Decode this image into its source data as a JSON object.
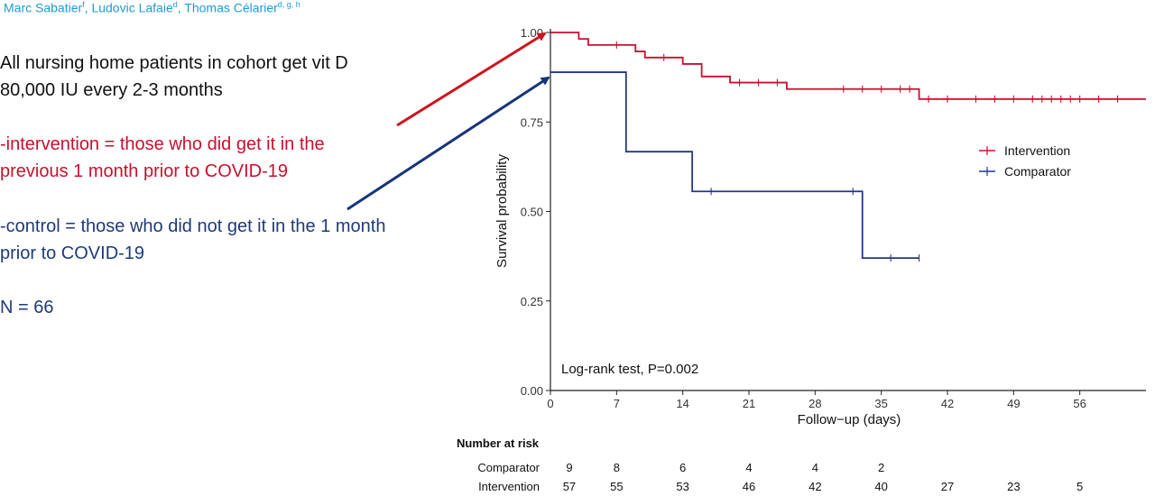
{
  "authors": [
    {
      "name": "Marc Sabatier",
      "sup": "f",
      "sep": ", "
    },
    {
      "name": "Ludovic Lafaie",
      "sup": "d",
      "sep": ", "
    },
    {
      "name": "Thomas Célarier",
      "sup": "d, g, h",
      "sep": ""
    }
  ],
  "bullets": {
    "line1a": "All nursing home patients in cohort get vit D",
    "line1b": "80,000 IU every 2-3 months",
    "line2a": "-intervention = those who did get it in the",
    "line2b": "previous 1 month prior to COVID-19",
    "line3a": "-control = those who did not get it in the 1 month",
    "line3b": "prior to COVID-19",
    "line4": "N = 66"
  },
  "colors": {
    "intervention": "#c8102e",
    "comparator": "#23378a",
    "arrow_red": "#d0121e",
    "arrow_blue": "#16357a"
  },
  "chart_data": {
    "type": "line",
    "subtype": "kaplan-meier",
    "xlabel": "Follow−up (days)",
    "ylabel": "Survival probability",
    "xlim": [
      0,
      63
    ],
    "ylim": [
      0,
      1.0
    ],
    "xticks": [
      "0",
      "7",
      "14",
      "21",
      "28",
      "35",
      "42",
      "49",
      "56"
    ],
    "yticks": [
      "0.00",
      "0.25",
      "0.50",
      "0.75",
      "1.00"
    ],
    "annotation": "Log-rank test, P=0.002",
    "legend_position": "right",
    "series": [
      {
        "name": "Intervention",
        "steps": [
          [
            0,
            1.0
          ],
          [
            3,
            0.982
          ],
          [
            4,
            0.965
          ],
          [
            9,
            0.947
          ],
          [
            10,
            0.93
          ],
          [
            14,
            0.912
          ],
          [
            16,
            0.877
          ],
          [
            19,
            0.86
          ],
          [
            25,
            0.842
          ],
          [
            39,
            0.814
          ],
          [
            63,
            0.814
          ]
        ],
        "censors": [
          [
            7,
            0.965
          ],
          [
            12,
            0.93
          ],
          [
            20,
            0.86
          ],
          [
            22,
            0.86
          ],
          [
            24,
            0.86
          ],
          [
            31,
            0.842
          ],
          [
            33,
            0.842
          ],
          [
            35,
            0.842
          ],
          [
            37,
            0.842
          ],
          [
            38,
            0.842
          ],
          [
            40,
            0.814
          ],
          [
            42,
            0.814
          ],
          [
            45,
            0.814
          ],
          [
            47,
            0.814
          ],
          [
            49,
            0.814
          ],
          [
            51,
            0.814
          ],
          [
            52,
            0.814
          ],
          [
            53,
            0.814
          ],
          [
            54,
            0.814
          ],
          [
            55,
            0.814
          ],
          [
            56,
            0.814
          ],
          [
            58,
            0.814
          ],
          [
            60,
            0.814
          ]
        ]
      },
      {
        "name": "Comparator",
        "steps": [
          [
            0,
            0.889
          ],
          [
            8,
            0.667
          ],
          [
            15,
            0.556
          ],
          [
            33,
            0.37
          ],
          [
            39,
            0.37
          ]
        ],
        "censors": [
          [
            17,
            0.556
          ],
          [
            32,
            0.556
          ],
          [
            36,
            0.37
          ],
          [
            39,
            0.37
          ]
        ]
      }
    ],
    "risk_table": {
      "title": "Number at risk",
      "times": [
        2,
        7,
        14,
        21,
        28,
        35,
        42,
        49,
        56
      ],
      "rows": [
        {
          "name": "Comparator",
          "values": [
            "9",
            "8",
            "6",
            "4",
            "4",
            "2",
            "",
            "",
            ""
          ]
        },
        {
          "name": "Intervention",
          "values": [
            "57",
            "55",
            "53",
            "46",
            "42",
            "40",
            "27",
            "23",
            "5"
          ]
        }
      ]
    }
  }
}
